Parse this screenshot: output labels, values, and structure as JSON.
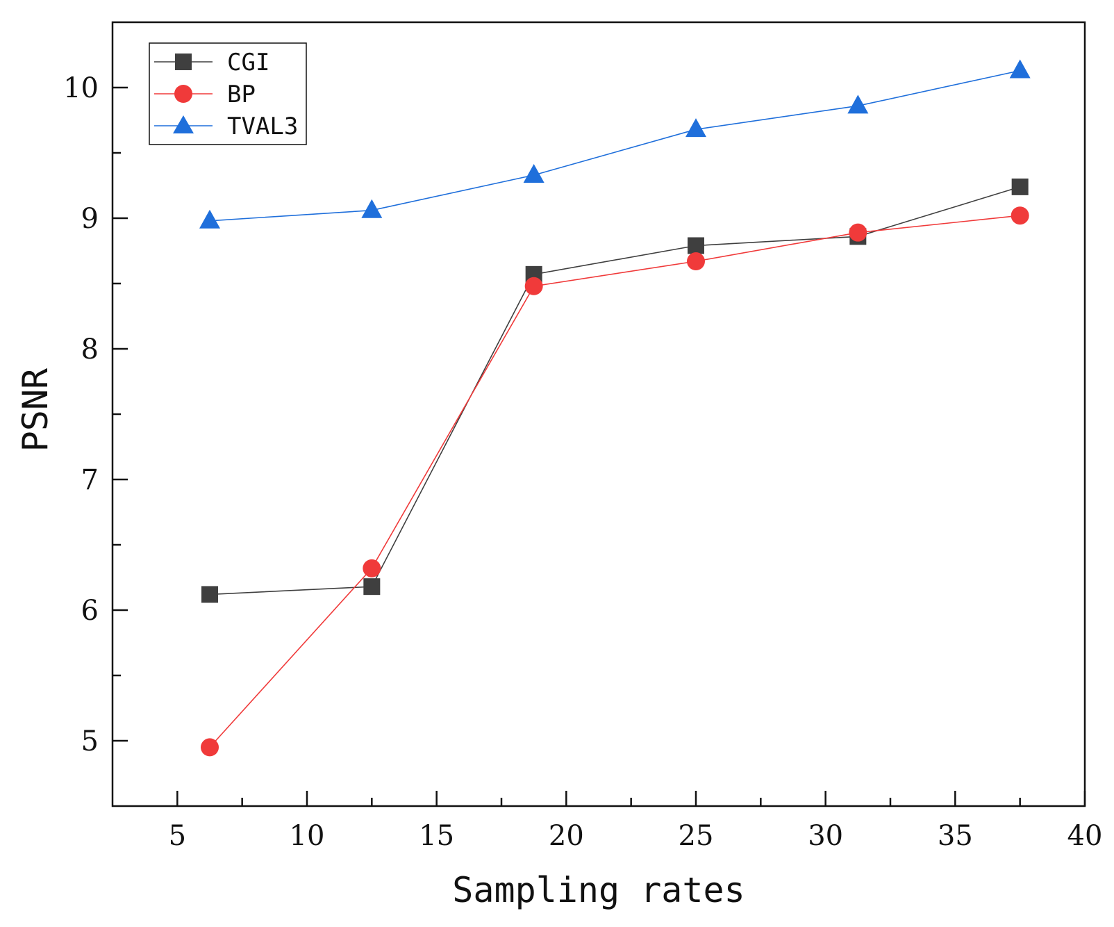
{
  "chart_data": {
    "type": "line",
    "title": "",
    "xlabel": "Sampling rates",
    "ylabel": "PSNR",
    "xlim": [
      2.5,
      40
    ],
    "ylim": [
      4.5,
      10.5
    ],
    "x_ticks": [
      5,
      10,
      15,
      20,
      25,
      30,
      35,
      40
    ],
    "x_tick_labels": [
      "5",
      "10",
      "15",
      "20",
      "25",
      "30",
      "35",
      "40"
    ],
    "x_minor_ticks": [
      7.5,
      12.5,
      17.5,
      22.5,
      27.5,
      32.5,
      37.5
    ],
    "y_ticks": [
      5,
      6,
      7,
      8,
      9,
      10
    ],
    "y_tick_labels": [
      "5",
      "6",
      "7",
      "8",
      "9",
      "10"
    ],
    "y_minor_ticks": [
      5.5,
      6.5,
      7.5,
      8.5,
      9.5
    ],
    "grid": false,
    "legend_position": "top-left",
    "x": [
      6.25,
      12.5,
      18.75,
      25,
      31.25,
      37.5
    ],
    "series": [
      {
        "name": "CGI",
        "values": [
          6.12,
          6.18,
          8.57,
          8.79,
          8.86,
          9.24
        ],
        "color": "#3f3f3f",
        "marker": "square"
      },
      {
        "name": "BP",
        "values": [
          4.95,
          6.32,
          8.48,
          8.67,
          8.89,
          9.02
        ],
        "color": "#f03a3a",
        "marker": "circle"
      },
      {
        "name": "TVAL3",
        "values": [
          8.98,
          9.06,
          9.33,
          9.68,
          9.86,
          10.13
        ],
        "color": "#1f6fdb",
        "marker": "triangle"
      }
    ]
  }
}
